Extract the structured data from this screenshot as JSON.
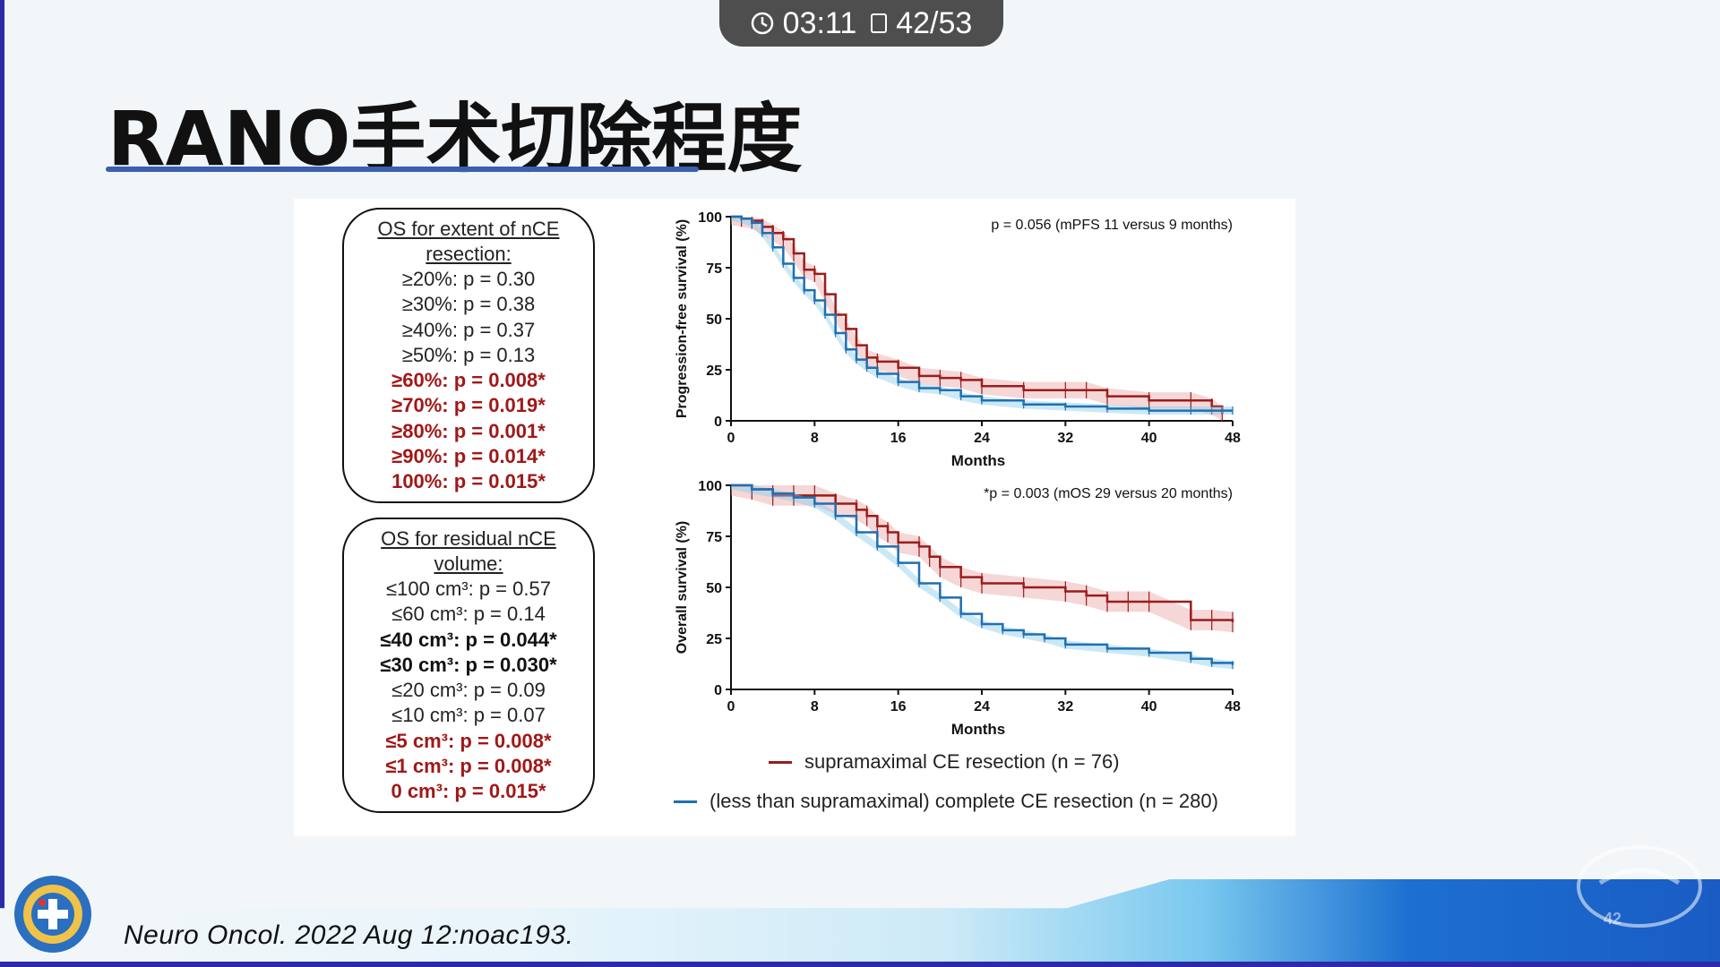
{
  "status_bar": {
    "time": "03:11",
    "page": "42/53"
  },
  "slide": {
    "title": "RANO手术切除程度",
    "citation": "Neuro Oncol. 2022 Aug 12:noac193.",
    "watermark_page": "42"
  },
  "box_extent": {
    "header": "OS for extent of nCE resection:",
    "rows": [
      {
        "text": "≥20%: p = 0.30",
        "style": "normal"
      },
      {
        "text": "≥30%: p = 0.38",
        "style": "normal"
      },
      {
        "text": "≥40%: p = 0.37",
        "style": "normal"
      },
      {
        "text": "≥50%: p = 0.13",
        "style": "normal"
      },
      {
        "text": "≥60%:  p = 0.008*",
        "style": "red"
      },
      {
        "text": "≥70%:  p = 0.019*",
        "style": "red"
      },
      {
        "text": "≥80%:  p = 0.001*",
        "style": "red"
      },
      {
        "text": "≥90%:  p = 0.014*",
        "style": "red"
      },
      {
        "text": "100%:  p = 0.015*",
        "style": "red"
      }
    ]
  },
  "box_residual": {
    "header": "OS for residual nCE volume:",
    "rows": [
      {
        "text": "≤100 cm³: p = 0.57",
        "style": "normal"
      },
      {
        "text": "≤60 cm³: p = 0.14",
        "style": "normal"
      },
      {
        "text": "≤40 cm³: p = 0.044*",
        "style": "bold"
      },
      {
        "text": "≤30 cm³: p = 0.030*",
        "style": "bold"
      },
      {
        "text": "≤20 cm³: p = 0.09",
        "style": "normal"
      },
      {
        "text": "≤10 cm³: p = 0.07",
        "style": "normal"
      },
      {
        "text": "≤5 cm³: p = 0.008*",
        "style": "red"
      },
      {
        "text": "≤1 cm³: p = 0.008*",
        "style": "red"
      },
      {
        "text": "0 cm³: p = 0.015*",
        "style": "red"
      }
    ]
  },
  "legend": {
    "red": "supramaximal CE resection (n = 76)",
    "blue": "(less than supramaximal) complete CE resection (n = 280)"
  },
  "colors": {
    "red_series": "#9b1c1c",
    "blue_series": "#1f6fb2",
    "red_band": "#e8a6a6",
    "blue_band": "#8ccbea"
  },
  "chart_data": [
    {
      "type": "line",
      "title": "",
      "annotation": "p = 0.056 (mPFS 11 versus 9 months)",
      "xlabel": "Months",
      "ylabel": "Progression-free survival (%)",
      "xlim": [
        0,
        48
      ],
      "ylim": [
        0,
        100
      ],
      "xticks": [
        0,
        8,
        16,
        24,
        32,
        40,
        48
      ],
      "yticks": [
        0,
        25,
        50,
        75,
        100
      ],
      "series": [
        {
          "name": "supramaximal CE resection (n = 76)",
          "color": "red",
          "x": [
            0,
            1,
            2,
            3,
            4,
            5,
            6,
            7,
            8,
            9,
            10,
            11,
            12,
            13,
            14,
            16,
            18,
            20,
            22,
            24,
            28,
            32,
            34,
            36,
            40,
            44,
            46,
            47
          ],
          "y": [
            100,
            99,
            98,
            95,
            92,
            89,
            82,
            74,
            72,
            62,
            52,
            45,
            37,
            31,
            29,
            26,
            22,
            21,
            20,
            17,
            15,
            15,
            15,
            12,
            10,
            10,
            7,
            3
          ],
          "band": 4
        },
        {
          "name": "(less than supramaximal) complete CE resection (n = 280)",
          "color": "blue",
          "x": [
            0,
            1,
            2,
            3,
            4,
            5,
            6,
            7,
            8,
            9,
            10,
            11,
            12,
            13,
            14,
            16,
            18,
            20,
            22,
            24,
            28,
            32,
            36,
            40,
            44,
            48
          ],
          "y": [
            100,
            99,
            97,
            92,
            85,
            77,
            70,
            64,
            59,
            52,
            43,
            35,
            30,
            26,
            23,
            19,
            16,
            15,
            12,
            10,
            8,
            7,
            6,
            5,
            5,
            5
          ],
          "band": 2
        }
      ]
    },
    {
      "type": "line",
      "title": "",
      "annotation": "*p = 0.003 (mOS 29 versus 20 months)",
      "xlabel": "Months",
      "ylabel": "Overall survival (%)",
      "xlim": [
        0,
        48
      ],
      "ylim": [
        0,
        100
      ],
      "xticks": [
        0,
        8,
        16,
        24,
        32,
        40,
        48
      ],
      "yticks": [
        0,
        25,
        50,
        75,
        100
      ],
      "series": [
        {
          "name": "supramaximal CE resection (n = 76)",
          "color": "red",
          "x": [
            0,
            2,
            4,
            6,
            8,
            10,
            12,
            13,
            14,
            15,
            16,
            18,
            19,
            20,
            22,
            24,
            28,
            32,
            34,
            36,
            38,
            40,
            44,
            46,
            48
          ],
          "y": [
            100,
            98,
            95,
            95,
            95,
            91,
            88,
            85,
            80,
            77,
            72,
            70,
            65,
            60,
            55,
            52,
            50,
            48,
            46,
            43,
            43,
            43,
            34,
            34,
            33
          ],
          "band": 5
        },
        {
          "name": "(less than supramaximal) complete CE resection (n = 280)",
          "color": "blue",
          "x": [
            0,
            2,
            4,
            6,
            8,
            10,
            12,
            14,
            16,
            18,
            20,
            22,
            24,
            26,
            28,
            30,
            32,
            36,
            40,
            44,
            46,
            48
          ],
          "y": [
            100,
            98,
            96,
            94,
            91,
            85,
            77,
            70,
            62,
            52,
            45,
            37,
            32,
            29,
            27,
            25,
            22,
            20,
            18,
            15,
            13,
            12
          ],
          "band": 2
        }
      ]
    }
  ]
}
